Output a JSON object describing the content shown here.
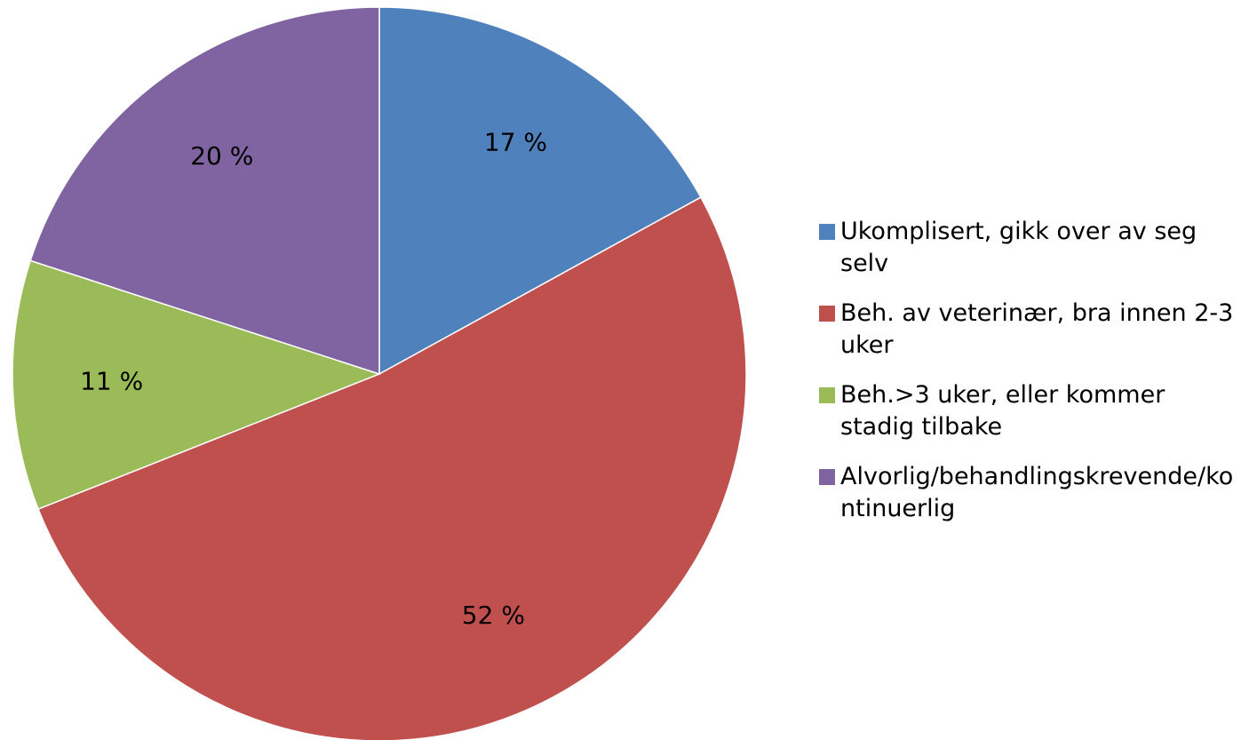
{
  "chart_data": {
    "type": "pie",
    "categories": [
      "Ukomplisert, gikk over av seg selv",
      "Beh. av veterinær, bra innen 2-3 uker",
      "Beh.>3 uker, eller kommer stadig tilbake",
      "Alvorlig/behandlingskrevende/kontinuerlig"
    ],
    "values": [
      17,
      52,
      11,
      20
    ],
    "value_labels": [
      "17 %",
      "52 %",
      "11 %",
      "20 %"
    ],
    "colors": [
      "#4f81bd",
      "#c0504d",
      "#9bbb59",
      "#8064a2"
    ],
    "legend": "right"
  }
}
